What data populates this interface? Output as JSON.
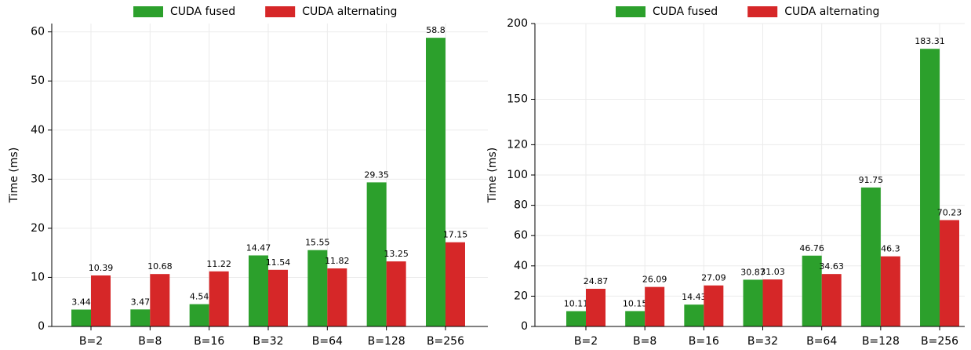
{
  "chart_data": [
    {
      "type": "bar",
      "ylabel": "Time (ms)",
      "categories": [
        "B=2",
        "B=8",
        "B=16",
        "B=32",
        "B=64",
        "B=128",
        "B=256"
      ],
      "series": [
        {
          "name": "CUDA fused",
          "color": "#2ca02c",
          "values": [
            3.44,
            3.47,
            4.54,
            14.47,
            15.55,
            29.35,
            58.8
          ]
        },
        {
          "name": "CUDA alternating",
          "color": "#d62728",
          "values": [
            10.39,
            10.68,
            11.22,
            11.54,
            11.82,
            13.25,
            17.15
          ]
        }
      ],
      "ylim": [
        0,
        61.7
      ],
      "yticks": [
        0,
        10,
        20,
        30,
        40,
        50,
        60
      ],
      "grid": true,
      "legend": "upper center"
    },
    {
      "type": "bar",
      "ylabel": "Time (ms)",
      "categories": [
        "B=2",
        "B=8",
        "B=16",
        "B=32",
        "B=64",
        "B=128",
        "B=256"
      ],
      "series": [
        {
          "name": "CUDA fused",
          "color": "#2ca02c",
          "values": [
            10.11,
            10.15,
            14.43,
            30.87,
            46.76,
            91.75,
            183.31
          ]
        },
        {
          "name": "CUDA alternating",
          "color": "#d62728",
          "values": [
            24.87,
            26.09,
            27.09,
            31.03,
            34.63,
            46.3,
            70.23
          ]
        }
      ],
      "ylim": [
        0,
        200
      ],
      "yticks": [
        0,
        20,
        40,
        60,
        80,
        100,
        120,
        150,
        200
      ],
      "grid": true,
      "legend": "upper center"
    }
  ]
}
